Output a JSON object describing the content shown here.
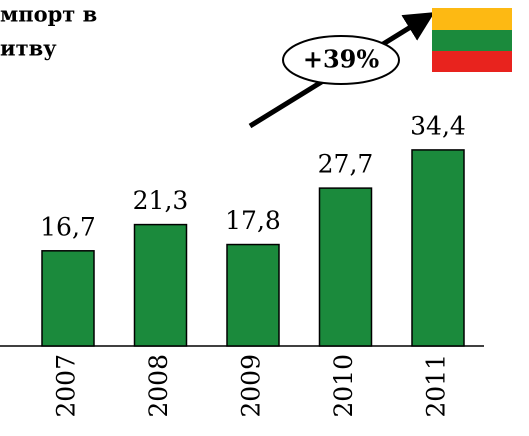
{
  "chart_data": {
    "type": "bar",
    "title": [
      "мпорт в",
      "итву"
    ],
    "annotation": "+39%",
    "categories": [
      "2007",
      "2008",
      "2009",
      "2010",
      "2011"
    ],
    "values": [
      16.7,
      21.3,
      17.8,
      27.7,
      34.4
    ],
    "value_labels": [
      "16,7",
      "21,3",
      "17,8",
      "27,7",
      "34,4"
    ],
    "color": "#1b8a3c"
  }
}
